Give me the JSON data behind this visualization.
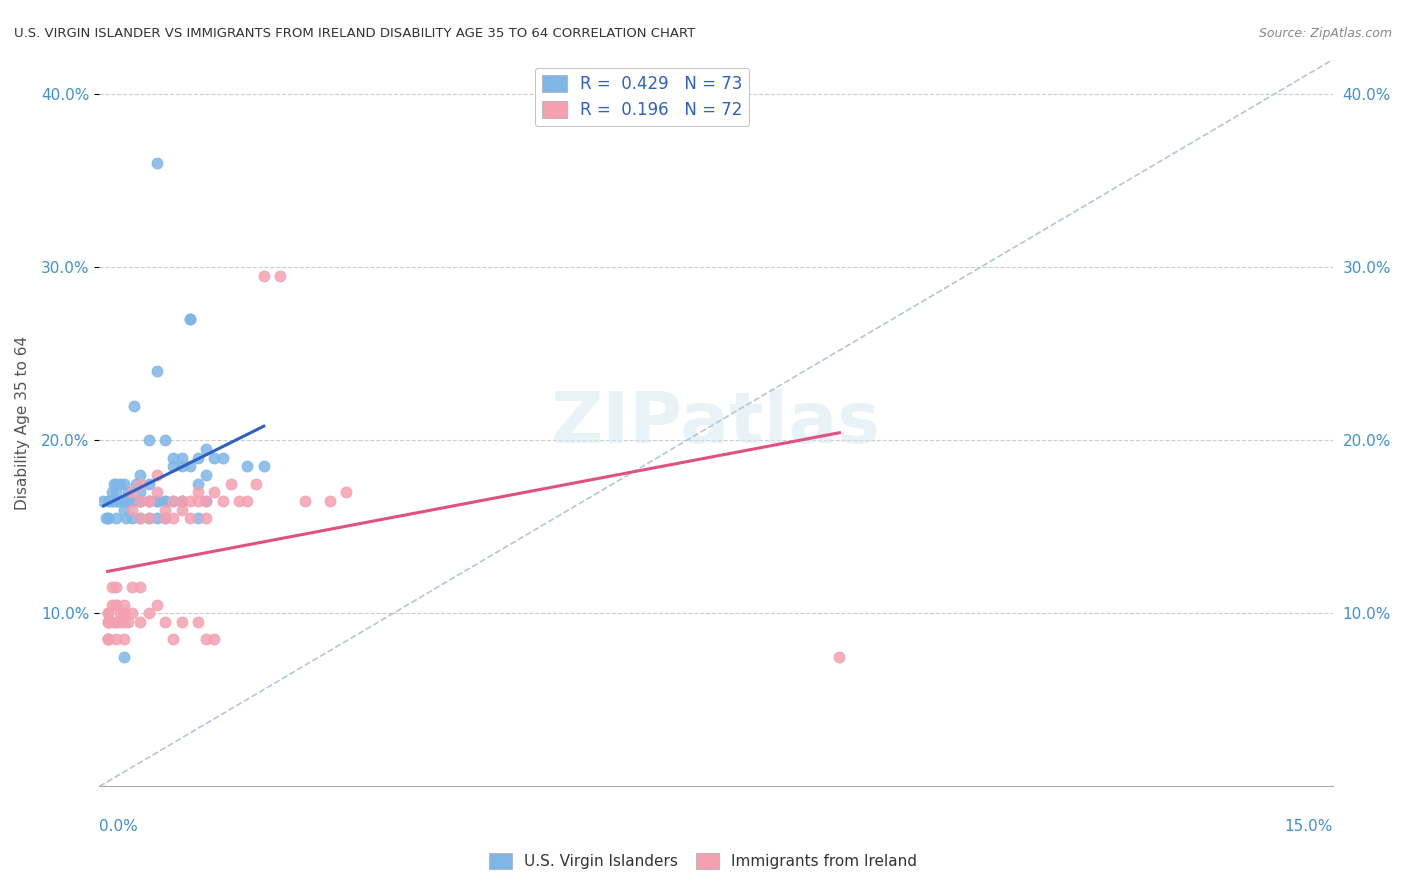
{
  "title": "U.S. VIRGIN ISLANDER VS IMMIGRANTS FROM IRELAND DISABILITY AGE 35 TO 64 CORRELATION CHART",
  "source": "Source: ZipAtlas.com",
  "ylabel": "Disability Age 35 to 64",
  "xlim": [
    0.0,
    0.15
  ],
  "ylim": [
    0.0,
    0.42
  ],
  "y_ticks": [
    0.1,
    0.2,
    0.3,
    0.4
  ],
  "y_tick_labels": [
    "10.0%",
    "20.0%",
    "30.0%",
    "40.0%"
  ],
  "series1_label": "U.S. Virgin Islanders",
  "series2_label": "Immigrants from Ireland",
  "series1_color": "#7EB6E8",
  "series2_color": "#F4A0B0",
  "series1_line_color": "#3060C0",
  "series2_line_color": "#E05080",
  "trendline_dashed_color": "#B0C8D8",
  "watermark": "ZIPatlas",
  "series1_R": 0.429,
  "series1_N": 73,
  "series2_R": 0.196,
  "series2_N": 72,
  "series1_x": [
    0.0012,
    0.0015,
    0.0018,
    0.002,
    0.0022,
    0.0025,
    0.003,
    0.003,
    0.0032,
    0.0035,
    0.0035,
    0.004,
    0.004,
    0.0042,
    0.0045,
    0.005,
    0.005,
    0.005,
    0.006,
    0.006,
    0.006,
    0.007,
    0.007,
    0.007,
    0.008,
    0.008,
    0.008,
    0.009,
    0.009,
    0.01,
    0.01,
    0.01,
    0.011,
    0.011,
    0.012,
    0.012,
    0.013,
    0.013,
    0.014,
    0.015,
    0.001,
    0.001,
    0.0015,
    0.002,
    0.002,
    0.0025,
    0.003,
    0.003,
    0.0035,
    0.004,
    0.004,
    0.005,
    0.005,
    0.006,
    0.006,
    0.007,
    0.008,
    0.009,
    0.01,
    0.011,
    0.012,
    0.013,
    0.018,
    0.02,
    0.0005,
    0.0008,
    0.001,
    0.0015,
    0.002,
    0.003,
    0.004,
    0.005,
    0.007
  ],
  "series1_y": [
    0.165,
    0.17,
    0.175,
    0.17,
    0.165,
    0.175,
    0.175,
    0.16,
    0.155,
    0.17,
    0.165,
    0.165,
    0.155,
    0.22,
    0.175,
    0.17,
    0.18,
    0.165,
    0.175,
    0.165,
    0.2,
    0.155,
    0.24,
    0.165,
    0.155,
    0.165,
    0.2,
    0.185,
    0.19,
    0.19,
    0.185,
    0.165,
    0.27,
    0.27,
    0.19,
    0.175,
    0.18,
    0.165,
    0.19,
    0.19,
    0.165,
    0.155,
    0.165,
    0.155,
    0.165,
    0.165,
    0.165,
    0.075,
    0.165,
    0.165,
    0.165,
    0.155,
    0.165,
    0.165,
    0.155,
    0.165,
    0.165,
    0.165,
    0.165,
    0.185,
    0.155,
    0.195,
    0.185,
    0.185,
    0.165,
    0.155,
    0.155,
    0.165,
    0.175,
    0.165,
    0.165,
    0.165,
    0.36
  ],
  "series2_x": [
    0.001,
    0.001,
    0.001,
    0.0015,
    0.0015,
    0.002,
    0.002,
    0.002,
    0.0025,
    0.0025,
    0.003,
    0.003,
    0.003,
    0.0035,
    0.004,
    0.004,
    0.004,
    0.005,
    0.005,
    0.005,
    0.006,
    0.006,
    0.006,
    0.007,
    0.007,
    0.008,
    0.008,
    0.009,
    0.009,
    0.01,
    0.01,
    0.011,
    0.011,
    0.012,
    0.012,
    0.013,
    0.013,
    0.014,
    0.015,
    0.016,
    0.017,
    0.018,
    0.019,
    0.02,
    0.022,
    0.025,
    0.028,
    0.03,
    0.001,
    0.001,
    0.001,
    0.0012,
    0.0015,
    0.002,
    0.002,
    0.003,
    0.003,
    0.004,
    0.005,
    0.005,
    0.006,
    0.007,
    0.008,
    0.009,
    0.01,
    0.012,
    0.013,
    0.014,
    0.09,
    0.001,
    0.001,
    0.002
  ],
  "series2_y": [
    0.095,
    0.1,
    0.085,
    0.095,
    0.105,
    0.105,
    0.095,
    0.085,
    0.1,
    0.095,
    0.1,
    0.095,
    0.085,
    0.095,
    0.1,
    0.16,
    0.17,
    0.155,
    0.165,
    0.175,
    0.155,
    0.165,
    0.165,
    0.18,
    0.17,
    0.16,
    0.155,
    0.155,
    0.165,
    0.16,
    0.165,
    0.165,
    0.155,
    0.17,
    0.165,
    0.155,
    0.165,
    0.17,
    0.165,
    0.175,
    0.165,
    0.165,
    0.175,
    0.295,
    0.295,
    0.165,
    0.165,
    0.17,
    0.1,
    0.095,
    0.085,
    0.095,
    0.115,
    0.115,
    0.105,
    0.105,
    0.1,
    0.115,
    0.115,
    0.095,
    0.1,
    0.105,
    0.095,
    0.085,
    0.095,
    0.095,
    0.085,
    0.085,
    0.075,
    0.085,
    0.085,
    0.095
  ]
}
